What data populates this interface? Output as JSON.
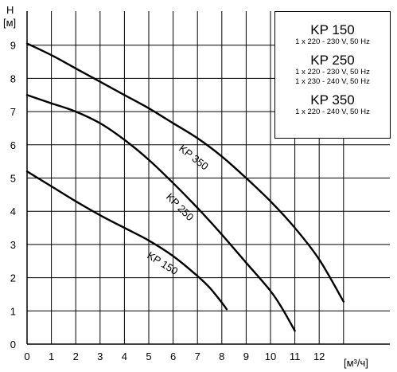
{
  "chart_data": {
    "type": "line",
    "xlabel": "[м³/ч]",
    "ylabel_top": "H",
    "ylabel_unit": "[м]",
    "xlim": [
      0,
      13.5
    ],
    "ylim": [
      0,
      9.5
    ],
    "x_ticks": [
      "0",
      "1",
      "2",
      "3",
      "4",
      "5",
      "6",
      "7",
      "8",
      "9",
      "10",
      "11",
      "12"
    ],
    "y_ticks": [
      "0",
      "1",
      "2",
      "3",
      "4",
      "5",
      "6",
      "7",
      "8",
      "9"
    ],
    "grid": true,
    "series": [
      {
        "name": "KP 150",
        "x": [
          0,
          1,
          2,
          3,
          4,
          5,
          6,
          7,
          7.5,
          8,
          8.2
        ],
        "y": [
          5.2,
          4.75,
          4.3,
          3.88,
          3.5,
          3.12,
          2.65,
          2.05,
          1.7,
          1.25,
          1.05
        ]
      },
      {
        "name": "KP 250",
        "x": [
          0,
          1,
          2,
          3,
          4,
          5,
          6,
          7,
          8,
          9,
          10,
          10.5,
          11
        ],
        "y": [
          7.5,
          7.25,
          7.0,
          6.65,
          6.15,
          5.55,
          4.85,
          4.1,
          3.3,
          2.45,
          1.6,
          1.05,
          0.4
        ]
      },
      {
        "name": "KP 350",
        "x": [
          0,
          1,
          2,
          3,
          4,
          5,
          6,
          7,
          8,
          9,
          10,
          11,
          12,
          13
        ],
        "y": [
          9.05,
          8.7,
          8.3,
          7.9,
          7.5,
          7.1,
          6.65,
          6.2,
          5.65,
          5.0,
          4.3,
          3.5,
          2.55,
          1.28
        ]
      }
    ]
  },
  "legend": [
    {
      "model": "KP 150",
      "specs": [
        "1 x 220 - 230 V, 50 Hz"
      ]
    },
    {
      "model": "KP 250",
      "specs": [
        "1 x 220 - 230 V, 50 Hz",
        "1 x 230 - 240 V, 50 Hz"
      ]
    },
    {
      "model": "KP 350",
      "specs": [
        "1 x 220 - 240 V, 50 Hz"
      ]
    }
  ]
}
